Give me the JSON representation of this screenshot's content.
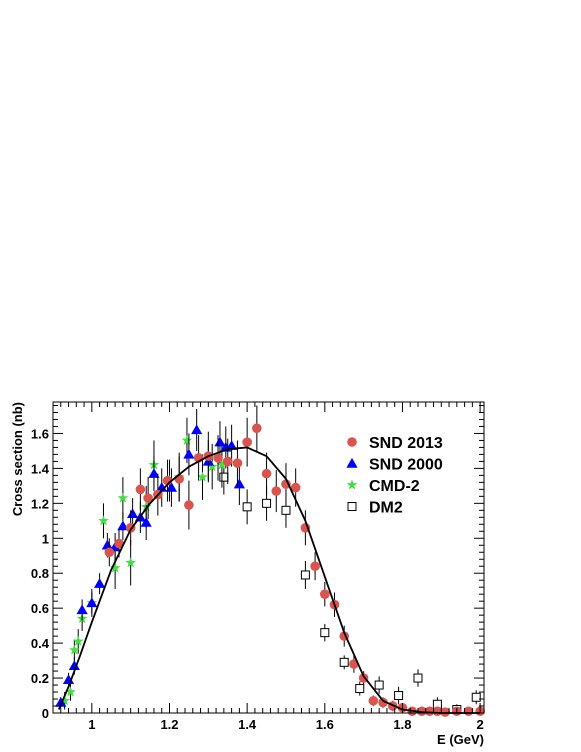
{
  "chart_data": {
    "type": "scatter",
    "xlabel": "E (GeV)",
    "ylabel": "Cross section (nb)",
    "xlim": [
      0.9,
      2.01
    ],
    "ylim": [
      0,
      1.78
    ],
    "x_ticks": [
      "1",
      "1.2",
      "1.4",
      "1.6",
      "1.8",
      "2"
    ],
    "y_ticks": [
      "0",
      "0.2",
      "0.4",
      "0.6",
      "0.8",
      "1",
      "1.2",
      "1.4",
      "1.6"
    ],
    "legend_position": "top-right",
    "series": [
      {
        "name": "SND 2013",
        "marker": "circle",
        "color": "#d9534f",
        "points": [
          [
            1.045,
            0.92,
            0.08
          ],
          [
            1.07,
            0.97,
            0.08
          ],
          [
            1.1,
            1.06,
            0.1
          ],
          [
            1.125,
            1.28,
            0.12
          ],
          [
            1.145,
            1.23,
            0.12
          ],
          [
            1.17,
            1.25,
            0.12
          ],
          [
            1.195,
            1.33,
            0.12
          ],
          [
            1.225,
            1.34,
            0.13
          ],
          [
            1.25,
            1.19,
            0.14
          ],
          [
            1.275,
            1.46,
            0.13
          ],
          [
            1.3,
            1.47,
            0.14
          ],
          [
            1.325,
            1.46,
            0.13
          ],
          [
            1.35,
            1.44,
            0.13
          ],
          [
            1.375,
            1.43,
            0.13
          ],
          [
            1.4,
            1.55,
            0.14
          ],
          [
            1.425,
            1.63,
            0.13
          ],
          [
            1.45,
            1.37,
            0.12
          ],
          [
            1.475,
            1.27,
            0.12
          ],
          [
            1.5,
            1.31,
            0.12
          ],
          [
            1.525,
            1.29,
            0.11
          ],
          [
            1.55,
            1.06,
            0.1
          ],
          [
            1.575,
            0.84,
            0.08
          ],
          [
            1.6,
            0.68,
            0.07
          ],
          [
            1.625,
            0.62,
            0.07
          ],
          [
            1.65,
            0.44,
            0.06
          ],
          [
            1.675,
            0.28,
            0.05
          ],
          [
            1.7,
            0.2,
            0.04
          ],
          [
            1.725,
            0.07,
            0.03
          ],
          [
            1.75,
            0.06,
            0.03
          ],
          [
            1.775,
            0.04,
            0.03
          ],
          [
            1.8,
            0.03,
            0.02
          ],
          [
            1.825,
            0.01,
            0.02
          ],
          [
            1.85,
            0.01,
            0.02
          ],
          [
            1.87,
            0.01,
            0.02
          ],
          [
            1.89,
            0.01,
            0.02
          ],
          [
            1.91,
            0.005,
            0.01
          ],
          [
            1.94,
            0.01,
            0.01
          ],
          [
            1.97,
            0.01,
            0.01
          ],
          [
            2.0,
            0.01,
            0.01
          ]
        ]
      },
      {
        "name": "SND 2000",
        "marker": "triangle",
        "color": "#0000ff",
        "points": [
          [
            0.92,
            0.06,
            0.03
          ],
          [
            0.94,
            0.19,
            0.04
          ],
          [
            0.955,
            0.27,
            0.05
          ],
          [
            0.975,
            0.59,
            0.06
          ],
          [
            1.0,
            0.63,
            0.06
          ],
          [
            1.02,
            0.74,
            0.06
          ],
          [
            1.04,
            0.96,
            0.07
          ],
          [
            1.06,
            0.95,
            0.08
          ],
          [
            1.08,
            1.07,
            0.08
          ],
          [
            1.105,
            1.14,
            0.09
          ],
          [
            1.125,
            1.12,
            0.09
          ],
          [
            1.14,
            1.09,
            0.1
          ],
          [
            1.16,
            1.37,
            0.1
          ],
          [
            1.18,
            1.29,
            0.11
          ],
          [
            1.205,
            1.29,
            0.11
          ],
          [
            1.25,
            1.48,
            0.12
          ],
          [
            1.27,
            1.62,
            0.12
          ],
          [
            1.3,
            1.44,
            0.12
          ],
          [
            1.33,
            1.55,
            0.12
          ],
          [
            1.345,
            1.52,
            0.12
          ],
          [
            1.36,
            1.53,
            0.12
          ],
          [
            1.38,
            1.31,
            0.12
          ]
        ]
      },
      {
        "name": "CMD-2",
        "marker": "star",
        "color": "#44dd44",
        "points": [
          [
            0.93,
            0.07,
            0.05
          ],
          [
            0.945,
            0.12,
            0.05
          ],
          [
            0.955,
            0.36,
            0.06
          ],
          [
            0.965,
            0.41,
            0.07
          ],
          [
            0.975,
            0.54,
            0.07
          ],
          [
            1.0,
            0.63,
            0.08
          ],
          [
            1.03,
            1.1,
            0.1
          ],
          [
            1.06,
            0.83,
            0.12
          ],
          [
            1.08,
            1.23,
            0.12
          ],
          [
            1.1,
            0.86,
            0.13
          ],
          [
            1.14,
            1.18,
            0.12
          ],
          [
            1.16,
            1.42,
            0.14
          ],
          [
            1.2,
            1.33,
            0.12
          ],
          [
            1.225,
            1.35,
            0.14
          ],
          [
            1.245,
            1.56,
            0.13
          ],
          [
            1.285,
            1.35,
            0.13
          ],
          [
            1.31,
            1.41,
            0.13
          ],
          [
            1.335,
            1.42,
            0.13
          ]
        ]
      },
      {
        "name": "DM2",
        "marker": "square",
        "color": "#000000",
        "points": [
          [
            1.34,
            1.35,
            0.1
          ],
          [
            1.4,
            1.18,
            0.1
          ],
          [
            1.45,
            1.2,
            0.1
          ],
          [
            1.5,
            1.16,
            0.1
          ],
          [
            1.55,
            0.79,
            0.08
          ],
          [
            1.6,
            0.46,
            0.05
          ],
          [
            1.65,
            0.29,
            0.04
          ],
          [
            1.69,
            0.14,
            0.04
          ],
          [
            1.74,
            0.16,
            0.05
          ],
          [
            1.79,
            0.1,
            0.05
          ],
          [
            1.84,
            0.2,
            0.05
          ],
          [
            1.89,
            0.05,
            0.04
          ],
          [
            1.94,
            0.02,
            0.03
          ],
          [
            1.99,
            0.09,
            0.04
          ]
        ]
      }
    ],
    "fit_curve": {
      "color": "#000000",
      "points": [
        [
          0.915,
          0.02
        ],
        [
          0.94,
          0.15
        ],
        [
          0.97,
          0.33
        ],
        [
          1.0,
          0.52
        ],
        [
          1.05,
          0.82
        ],
        [
          1.1,
          1.05
        ],
        [
          1.15,
          1.2
        ],
        [
          1.2,
          1.32
        ],
        [
          1.25,
          1.41
        ],
        [
          1.3,
          1.47
        ],
        [
          1.35,
          1.51
        ],
        [
          1.4,
          1.52
        ],
        [
          1.45,
          1.47
        ],
        [
          1.5,
          1.34
        ],
        [
          1.55,
          1.1
        ],
        [
          1.6,
          0.78
        ],
        [
          1.65,
          0.46
        ],
        [
          1.7,
          0.21
        ],
        [
          1.75,
          0.07
        ],
        [
          1.8,
          0.02
        ],
        [
          1.85,
          0.005
        ],
        [
          1.9,
          0.0
        ],
        [
          2.0,
          0.0
        ]
      ]
    }
  }
}
